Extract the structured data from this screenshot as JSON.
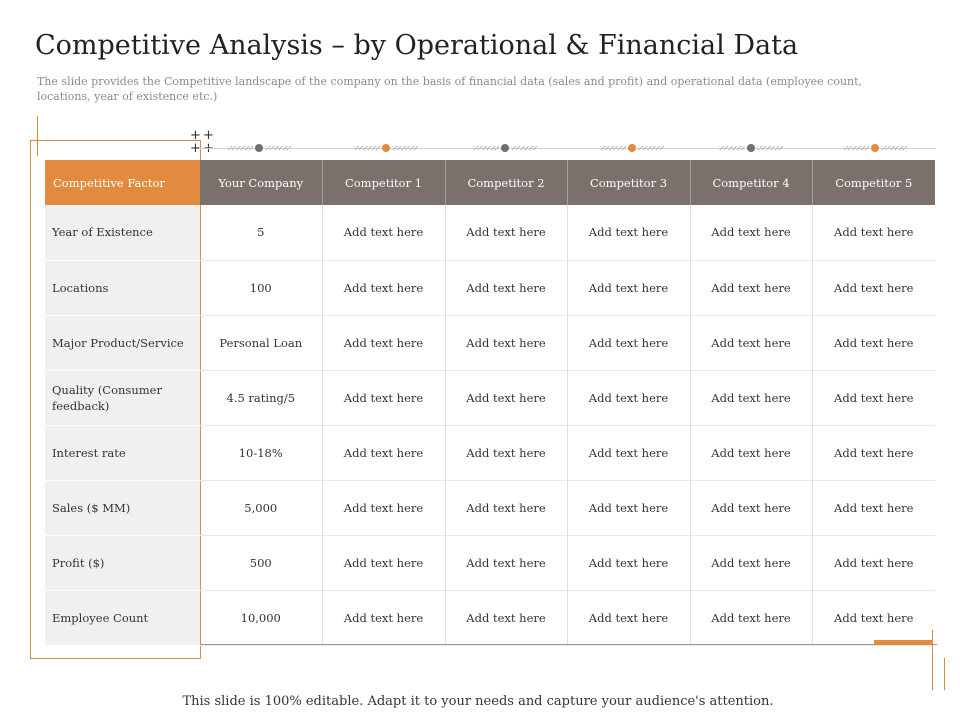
{
  "title": "Competitive Analysis – by Operational & Financial Data",
  "subtitle": "The slide provides the Competitive landscape of the company on the basis of financial data (sales and profit) and operational data (employee count, locations, year of existence etc.)",
  "colors": {
    "accent": "#e08b3e",
    "header_gray": "#7b716c",
    "dot_gray": "#6f6f6f"
  },
  "timeline_dots": [
    "gray",
    "orange",
    "gray",
    "orange",
    "gray",
    "orange"
  ],
  "table": {
    "headers": [
      "Competitive Factor",
      "Your Company",
      "Competitor 1",
      "Competitor 2",
      "Competitor 3",
      "Competitor 4",
      "Competitor 5"
    ],
    "rows": [
      {
        "factor": "Year of Existence",
        "cells": [
          "5",
          "Add text here",
          "Add text here",
          "Add text here",
          "Add text here",
          "Add text here"
        ]
      },
      {
        "factor": "Locations",
        "cells": [
          "100",
          "Add text here",
          "Add text here",
          "Add text here",
          "Add text here",
          "Add text here"
        ]
      },
      {
        "factor": "Major Product/Service",
        "cells": [
          "Personal Loan",
          "Add text here",
          "Add text here",
          "Add text here",
          "Add text here",
          "Add text here"
        ]
      },
      {
        "factor": "Quality (Consumer feedback)",
        "cells": [
          "4.5 rating/5",
          "Add text here",
          "Add text here",
          "Add text here",
          "Add text here",
          "Add text here"
        ]
      },
      {
        "factor": "Interest rate",
        "cells": [
          "10-18%",
          "Add text here",
          "Add text here",
          "Add text here",
          "Add text here",
          "Add text here"
        ]
      },
      {
        "factor": "Sales ($ MM)",
        "cells": [
          "5,000",
          "Add text here",
          "Add text here",
          "Add text here",
          "Add text here",
          "Add text here"
        ]
      },
      {
        "factor": "Profit ($)",
        "cells": [
          "500",
          "Add text here",
          "Add text here",
          "Add text here",
          "Add text here",
          "Add text here"
        ]
      },
      {
        "factor": "Employee Count",
        "cells": [
          "10,000",
          "Add text here",
          "Add text here",
          "Add text here",
          "Add text here",
          "Add text here"
        ]
      }
    ]
  },
  "footer": "This slide is 100% editable. Adapt it to your needs and capture your audience's attention."
}
